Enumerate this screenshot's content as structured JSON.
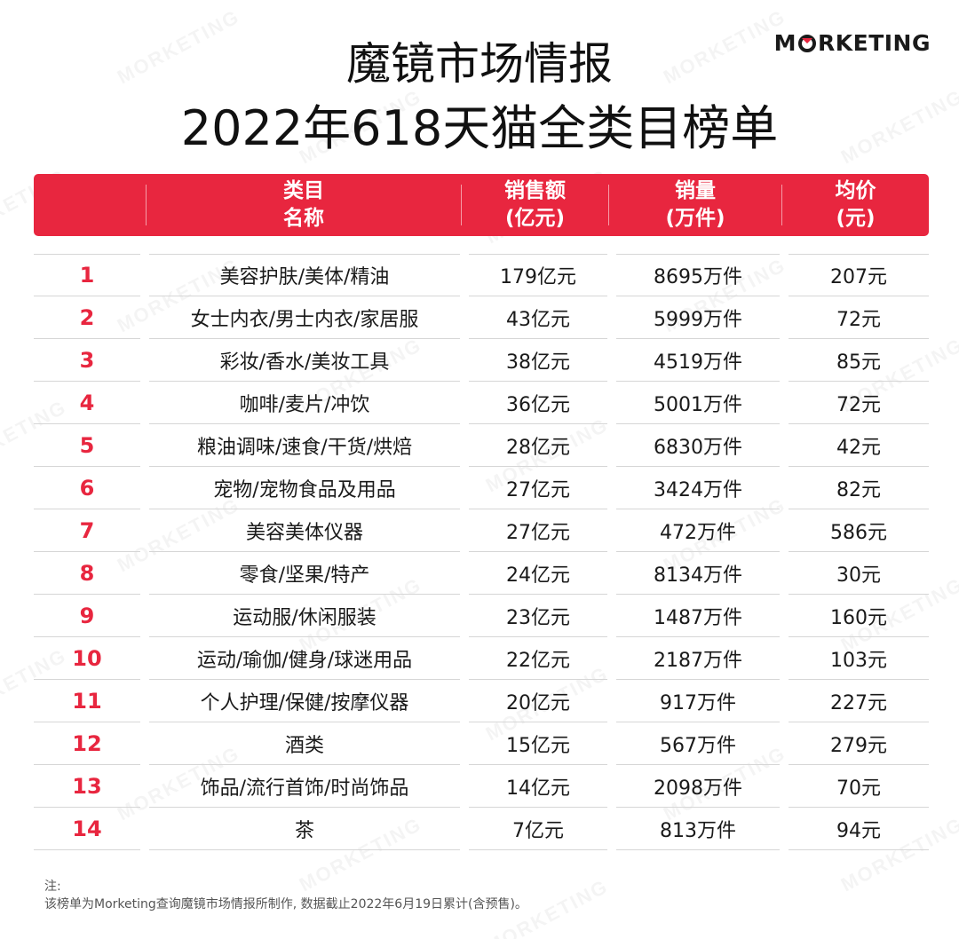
{
  "title_line1": "魔镜市场情报",
  "title_line2": "2022年618天猫全类目榜单",
  "logo": {
    "first": "M",
    "o_mark": "O",
    "rest": "RKETING"
  },
  "watermark_text": "MORKETING",
  "colors": {
    "accent": "#e8263f",
    "text": "#1a1a1a",
    "rule": "#d6d6d6"
  },
  "table": {
    "headers": [
      {
        "line1": "类目",
        "line2": "名称"
      },
      {
        "line1": "销售额",
        "line2": "(亿元)"
      },
      {
        "line1": "销量",
        "line2": "(万件)"
      },
      {
        "line1": "均价",
        "line2": "(元)"
      }
    ],
    "rows": [
      {
        "rank": "1",
        "category": "美容护肤/美体/精油",
        "sales": "179亿元",
        "volume": "8695万件",
        "avg_price": "207元"
      },
      {
        "rank": "2",
        "category": "女士内衣/男士内衣/家居服",
        "sales": "43亿元",
        "volume": "5999万件",
        "avg_price": "72元"
      },
      {
        "rank": "3",
        "category": "彩妆/香水/美妆工具",
        "sales": "38亿元",
        "volume": "4519万件",
        "avg_price": "85元"
      },
      {
        "rank": "4",
        "category": "咖啡/麦片/冲饮",
        "sales": "36亿元",
        "volume": "5001万件",
        "avg_price": "72元"
      },
      {
        "rank": "5",
        "category": "粮油调味/速食/干货/烘焙",
        "sales": "28亿元",
        "volume": "6830万件",
        "avg_price": "42元"
      },
      {
        "rank": "6",
        "category": "宠物/宠物食品及用品",
        "sales": "27亿元",
        "volume": "3424万件",
        "avg_price": "82元"
      },
      {
        "rank": "7",
        "category": "美容美体仪器",
        "sales": "27亿元",
        "volume": "472万件",
        "avg_price": "586元"
      },
      {
        "rank": "8",
        "category": "零食/坚果/特产",
        "sales": "24亿元",
        "volume": "8134万件",
        "avg_price": "30元"
      },
      {
        "rank": "9",
        "category": "运动服/休闲服装",
        "sales": "23亿元",
        "volume": "1487万件",
        "avg_price": "160元"
      },
      {
        "rank": "10",
        "category": "运动/瑜伽/健身/球迷用品",
        "sales": "22亿元",
        "volume": "2187万件",
        "avg_price": "103元"
      },
      {
        "rank": "11",
        "category": "个人护理/保健/按摩仪器",
        "sales": "20亿元",
        "volume": "917万件",
        "avg_price": "227元"
      },
      {
        "rank": "12",
        "category": "酒类",
        "sales": "15亿元",
        "volume": "567万件",
        "avg_price": "279元"
      },
      {
        "rank": "13",
        "category": "饰品/流行首饰/时尚饰品",
        "sales": "14亿元",
        "volume": "2098万件",
        "avg_price": "70元"
      },
      {
        "rank": "14",
        "category": "茶",
        "sales": "7亿元",
        "volume": "813万件",
        "avg_price": "94元"
      }
    ]
  },
  "note": {
    "label": "注:",
    "text": "该榜单为Morketing查询魔镜市场情报所制作, 数据截止2022年6月19日累计(含预售)。"
  }
}
